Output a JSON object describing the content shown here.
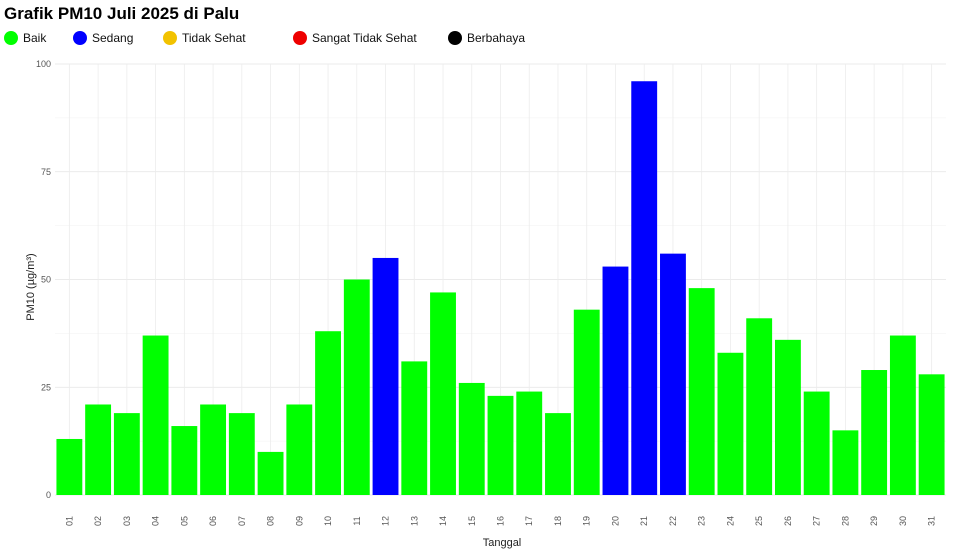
{
  "chart_data": {
    "type": "bar",
    "title": "Grafik PM10 Juli 2025 di Palu",
    "xlabel": "Tanggal",
    "ylabel": "PM10 (µg/m³)",
    "ylim": [
      0,
      100
    ],
    "yticks": [
      0,
      25,
      50,
      75,
      100
    ],
    "grid": true,
    "legend_position": "top-left",
    "legend": [
      {
        "label": "Baik",
        "color": "#00ff00"
      },
      {
        "label": "Sedang",
        "color": "#0000ff"
      },
      {
        "label": "Tidak Sehat",
        "color": "#f2c200"
      },
      {
        "label": "Sangat Tidak Sehat",
        "color": "#ee0000"
      },
      {
        "label": "Berbahaya",
        "color": "#000000"
      }
    ],
    "categories": [
      "01",
      "02",
      "03",
      "04",
      "05",
      "06",
      "07",
      "08",
      "09",
      "10",
      "11",
      "12",
      "13",
      "14",
      "15",
      "16",
      "17",
      "18",
      "19",
      "20",
      "21",
      "22",
      "23",
      "24",
      "25",
      "26",
      "27",
      "28",
      "29",
      "30",
      "31"
    ],
    "values": [
      13,
      21,
      19,
      37,
      16,
      21,
      19,
      10,
      21,
      38,
      50,
      55,
      31,
      47,
      26,
      23,
      24,
      19,
      43,
      53,
      96,
      56,
      48,
      33,
      41,
      36,
      24,
      15,
      29,
      37,
      28
    ],
    "bar_category": [
      "Baik",
      "Baik",
      "Baik",
      "Baik",
      "Baik",
      "Baik",
      "Baik",
      "Baik",
      "Baik",
      "Baik",
      "Baik",
      "Sedang",
      "Baik",
      "Baik",
      "Baik",
      "Baik",
      "Baik",
      "Baik",
      "Baik",
      "Sedang",
      "Sedang",
      "Sedang",
      "Baik",
      "Baik",
      "Baik",
      "Baik",
      "Baik",
      "Baik",
      "Baik",
      "Baik",
      "Baik"
    ]
  }
}
